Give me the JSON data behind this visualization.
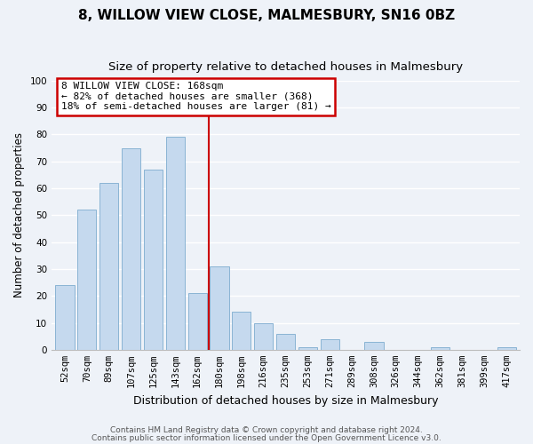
{
  "title": "8, WILLOW VIEW CLOSE, MALMESBURY, SN16 0BZ",
  "subtitle": "Size of property relative to detached houses in Malmesbury",
  "xlabel": "Distribution of detached houses by size in Malmesbury",
  "ylabel": "Number of detached properties",
  "bar_labels": [
    "52sqm",
    "70sqm",
    "89sqm",
    "107sqm",
    "125sqm",
    "143sqm",
    "162sqm",
    "180sqm",
    "198sqm",
    "216sqm",
    "235sqm",
    "253sqm",
    "271sqm",
    "289sqm",
    "308sqm",
    "326sqm",
    "344sqm",
    "362sqm",
    "381sqm",
    "399sqm",
    "417sqm"
  ],
  "bar_values": [
    24,
    52,
    62,
    75,
    67,
    79,
    21,
    31,
    14,
    10,
    6,
    1,
    4,
    0,
    3,
    0,
    0,
    1,
    0,
    0,
    1
  ],
  "bar_color": "#c5d9ee",
  "bar_edge_color": "#8ab4d4",
  "vline_x_index": 6,
  "vline_color": "#cc0000",
  "annotation_title": "8 WILLOW VIEW CLOSE: 168sqm",
  "annotation_line1": "← 82% of detached houses are smaller (368)",
  "annotation_line2": "18% of semi-detached houses are larger (81) →",
  "annotation_box_color": "white",
  "annotation_box_edge": "#cc0000",
  "ylim": [
    0,
    100
  ],
  "yticks": [
    0,
    10,
    20,
    30,
    40,
    50,
    60,
    70,
    80,
    90,
    100
  ],
  "footnote1": "Contains HM Land Registry data © Crown copyright and database right 2024.",
  "footnote2": "Contains public sector information licensed under the Open Government Licence v3.0.",
  "background_color": "#eef2f8",
  "grid_color": "white",
  "title_fontsize": 11,
  "subtitle_fontsize": 9.5,
  "xlabel_fontsize": 9,
  "ylabel_fontsize": 8.5,
  "tick_fontsize": 7.5,
  "annot_fontsize": 8,
  "footnote_fontsize": 6.5
}
